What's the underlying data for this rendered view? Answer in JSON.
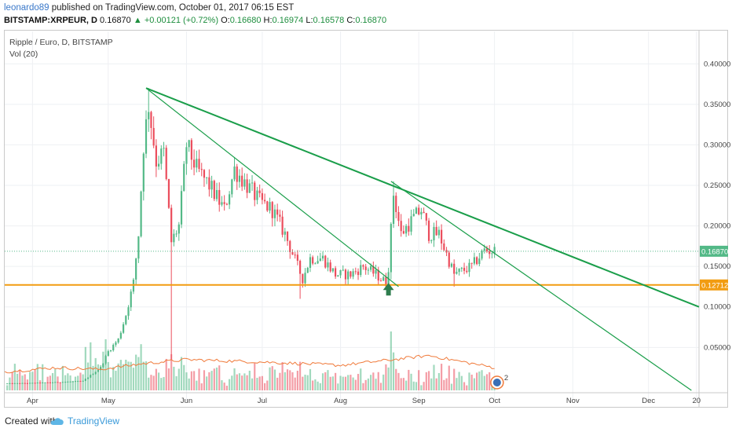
{
  "header": {
    "author": "leonardo89",
    "published_text": "published on TradingView.com, October 01, 2017 06:15 EST",
    "symbol": "BITSTAMP:XRPEUR, D",
    "last": "0.16870",
    "change": "+0.00121 (+0.72%)",
    "o_label": "O:",
    "o_value": "0.16680",
    "h_label": "H:",
    "h_value": "0.16974",
    "l_label": "L:",
    "l_value": "0.16578",
    "c_label": "C:",
    "c_value": "0.16870"
  },
  "legend": {
    "title": "Ripple / Euro, D, BITSTAMP",
    "indicator": "Vol (20)"
  },
  "footer": {
    "created_with": "Created with",
    "brand": "TradingView"
  },
  "colors": {
    "up": "#53b987",
    "down": "#eb4d5c",
    "trend": "#1a9e4a",
    "support": "#f29c11",
    "volume_ma": "#f07a3a",
    "price_badge": "#53b987",
    "support_badge": "#f29c11"
  },
  "icons": {
    "buy_arrow": "up-arrow-icon",
    "flag_badge": "event-flag-icon",
    "logo": "tradingview-cloud-icon"
  },
  "chart_data": {
    "type": "candlestick",
    "x_tick_labels": [
      "Apr",
      "May",
      "Jun",
      "Jul",
      "Aug",
      "Sep",
      "Oct",
      "Nov",
      "Dec",
      "20"
    ],
    "y_tick_labels": [
      "0.40000",
      "0.35000",
      "0.30000",
      "0.25000",
      "0.20000",
      "0.15000",
      "0.10000",
      "0.05000"
    ],
    "y_ticks": [
      0.4,
      0.35,
      0.3,
      0.25,
      0.2,
      0.15,
      0.1,
      0.05
    ],
    "ylim": [
      -0.003,
      0.44
    ],
    "x_range": [
      "2017-03-21",
      "2017-12-21"
    ],
    "last_price": 0.1687,
    "last_price_label": "0.16870",
    "support_level": 0.12712,
    "support_label": "0.12712",
    "badge_count": "2",
    "trendlines": [
      {
        "x1": "2017-05-16",
        "y1": 0.37,
        "x2": "2017-12-21",
        "y2": 0.1
      },
      {
        "x1": "2017-05-16",
        "y1": 0.37,
        "x2": "2017-08-24",
        "y2": 0.125
      },
      {
        "x1": "2017-08-21",
        "y1": 0.255,
        "x2": "2017-12-18",
        "y2": -0.003
      }
    ],
    "ohlc_keypoints": [
      [
        "2017-03-22",
        0.0055
      ],
      [
        "2017-03-31",
        0.006
      ],
      [
        "2017-04-10",
        0.007
      ],
      [
        "2017-04-21",
        0.0085
      ],
      [
        "2017-04-28",
        0.025
      ],
      [
        "2017-05-01",
        0.045
      ],
      [
        "2017-05-05",
        0.06
      ],
      [
        "2017-05-08",
        0.09
      ],
      [
        "2017-05-11",
        0.13
      ],
      [
        "2017-05-13",
        0.19
      ],
      [
        "2017-05-15",
        0.3
      ],
      [
        "2017-05-17",
        0.35
      ],
      [
        "2017-05-20",
        0.28
      ],
      [
        "2017-05-23",
        0.29
      ],
      [
        "2017-05-26",
        0.18
      ],
      [
        "2017-05-29",
        0.2
      ],
      [
        "2017-06-01",
        0.3
      ],
      [
        "2017-06-05",
        0.27
      ],
      [
        "2017-06-10",
        0.25
      ],
      [
        "2017-06-16",
        0.22
      ],
      [
        "2017-06-20",
        0.27
      ],
      [
        "2017-06-25",
        0.25
      ],
      [
        "2017-06-30",
        0.23
      ],
      [
        "2017-07-05",
        0.22
      ],
      [
        "2017-07-10",
        0.19
      ],
      [
        "2017-07-15",
        0.15
      ],
      [
        "2017-07-17",
        0.135
      ],
      [
        "2017-07-20",
        0.16
      ],
      [
        "2017-07-25",
        0.16
      ],
      [
        "2017-07-30",
        0.14
      ],
      [
        "2017-08-05",
        0.14
      ],
      [
        "2017-08-10",
        0.15
      ],
      [
        "2017-08-15",
        0.14
      ],
      [
        "2017-08-19",
        0.13
      ],
      [
        "2017-08-20",
        0.15
      ],
      [
        "2017-08-22",
        0.24
      ],
      [
        "2017-08-25",
        0.19
      ],
      [
        "2017-08-30",
        0.21
      ],
      [
        "2017-09-02",
        0.22
      ],
      [
        "2017-09-05",
        0.19
      ],
      [
        "2017-09-09",
        0.19
      ],
      [
        "2017-09-15",
        0.14
      ],
      [
        "2017-09-22",
        0.15
      ],
      [
        "2017-09-27",
        0.17
      ],
      [
        "2017-10-01",
        0.1687
      ]
    ],
    "volume_ma_keypoints": [
      [
        "2017-03-21",
        0.02
      ],
      [
        "2017-04-10",
        0.025
      ],
      [
        "2017-04-28",
        0.023
      ],
      [
        "2017-05-15",
        0.03
      ],
      [
        "2017-06-01",
        0.035
      ],
      [
        "2017-07-01",
        0.032
      ],
      [
        "2017-08-01",
        0.028
      ],
      [
        "2017-08-22",
        0.035
      ],
      [
        "2017-09-05",
        0.04
      ],
      [
        "2017-10-01",
        0.025
      ]
    ]
  }
}
